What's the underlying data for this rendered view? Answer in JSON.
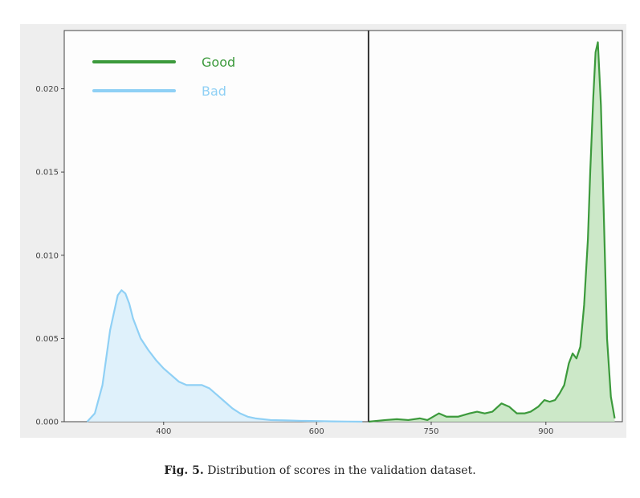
{
  "caption": {
    "label": "Fig. 5.",
    "text": "Distribution of scores in the validation dataset."
  },
  "chart_data": {
    "type": "area",
    "title": "",
    "xlabel": "",
    "ylabel": "",
    "xlim": [
      270,
      1000
    ],
    "ylim": [
      0,
      0.0235
    ],
    "x_ticks": [
      400,
      600,
      750,
      900
    ],
    "y_ticks": [
      0.0,
      0.005,
      0.01,
      0.015,
      0.02
    ],
    "y_tick_labels": [
      "0.000",
      "0.005",
      "0.010",
      "0.015",
      "0.020"
    ],
    "threshold_line_x": 668,
    "grid": false,
    "legend_position": "top-left",
    "colors": {
      "good": "#3c9a3c",
      "bad": "#8fd0f5"
    },
    "series": [
      {
        "name": "Good",
        "color": "#3c9a3c",
        "fill": "#c7e6c2",
        "x": [
          668,
          690,
          705,
          720,
          735,
          745,
          760,
          770,
          785,
          800,
          810,
          820,
          830,
          842,
          852,
          862,
          872,
          880,
          890,
          898,
          905,
          912,
          918,
          924,
          930,
          935,
          940,
          945,
          950,
          955,
          958,
          962,
          965,
          968,
          972,
          976,
          980,
          985,
          990
        ],
        "y": [
          0.0,
          0.0001,
          0.00015,
          0.0001,
          0.0002,
          0.0001,
          0.0005,
          0.0003,
          0.0003,
          0.0005,
          0.0006,
          0.0005,
          0.0006,
          0.0011,
          0.0009,
          0.0005,
          0.0005,
          0.0006,
          0.0009,
          0.0013,
          0.0012,
          0.0013,
          0.0017,
          0.0022,
          0.0035,
          0.0041,
          0.0038,
          0.0045,
          0.007,
          0.011,
          0.015,
          0.0195,
          0.0222,
          0.0228,
          0.019,
          0.012,
          0.005,
          0.0015,
          0.0002
        ]
      },
      {
        "name": "Bad",
        "color": "#8fd0f5",
        "fill": "#dbeffb",
        "x": [
          300,
          310,
          320,
          330,
          340,
          345,
          350,
          355,
          360,
          370,
          380,
          390,
          400,
          410,
          420,
          430,
          440,
          450,
          460,
          470,
          480,
          490,
          500,
          510,
          520,
          540,
          560,
          580,
          600,
          620,
          640,
          660
        ],
        "y": [
          0.0,
          0.0005,
          0.0022,
          0.0055,
          0.0076,
          0.0079,
          0.0077,
          0.0071,
          0.0062,
          0.005,
          0.0043,
          0.0037,
          0.0032,
          0.0028,
          0.0024,
          0.0022,
          0.0022,
          0.0022,
          0.002,
          0.0016,
          0.0012,
          0.0008,
          0.0005,
          0.0003,
          0.0002,
          0.0001,
          8e-05,
          5e-05,
          4e-05,
          2e-05,
          1e-05,
          0.0
        ]
      }
    ]
  }
}
